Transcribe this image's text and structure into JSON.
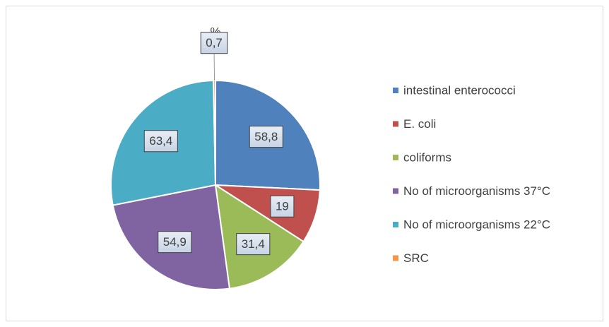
{
  "chart_data": {
    "type": "pie",
    "title": "%",
    "categories": [
      "intestinal enterococci",
      "E. coli",
      "coliforms",
      "No of microorganisms 37°C",
      "No of microorganisms 22°C",
      "SRC"
    ],
    "values": [
      58.8,
      19,
      31.4,
      54.9,
      63.4,
      0.7
    ],
    "value_labels": [
      "58,8",
      "19",
      "31,4",
      "54,9",
      "63,4",
      "0,7"
    ],
    "colors": [
      "#4f81bd",
      "#c0504d",
      "#9bbb59",
      "#8064a2",
      "#4bacc6",
      "#f79646"
    ],
    "legend": "right"
  }
}
